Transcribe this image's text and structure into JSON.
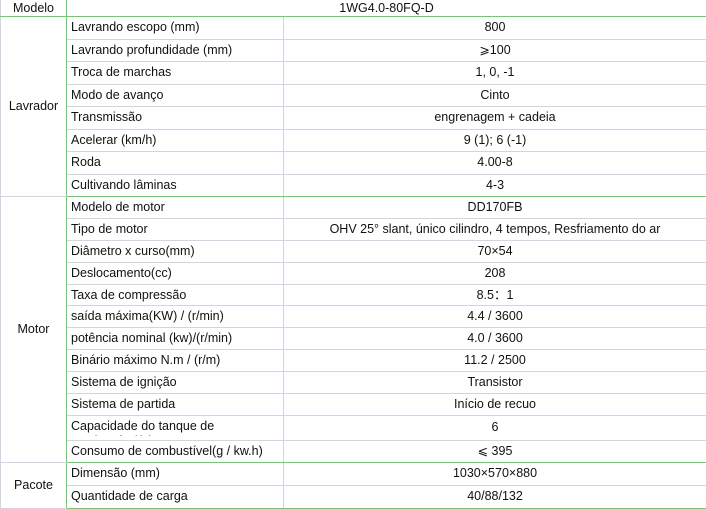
{
  "header": {
    "label": "Modelo",
    "model": "1WG4.0-80FQ-D"
  },
  "colors": {
    "group_border": "#4ee04e",
    "grid": "#ccd6e6"
  },
  "groups": [
    {
      "name": "Lavrador",
      "rows": [
        {
          "param": "Lavrando escopo (mm)",
          "value": "800"
        },
        {
          "param": "Lavrando profundidade (mm)",
          "value": "⩾100"
        },
        {
          "param": "Troca de marchas",
          "value": "1, 0, -1"
        },
        {
          "param": "Modo de avanço",
          "value": "Cinto"
        },
        {
          "param": "Transmissão",
          "value": "engrenagem + cadeia"
        },
        {
          "param": "Acelerar (km/h)",
          "value": "9 (1); 6 (-1)"
        },
        {
          "param": "Roda",
          "value": "4.00-8"
        },
        {
          "param": "Cultivando lâminas",
          "value": "4-3"
        }
      ]
    },
    {
      "name": "Motor",
      "rows": [
        {
          "param": "Modelo de motor",
          "value": "DD170FB"
        },
        {
          "param": "Tipo de motor",
          "value": "OHV 25° slant, único cilindro, 4 tempos, Resfriamento do ar"
        },
        {
          "param": "Diâmetro x curso(mm)",
          "value": "70×54"
        },
        {
          "param": "Deslocamento(cc)",
          "value": "208"
        },
        {
          "param": "Taxa de compressão",
          "value": "8.5：1"
        },
        {
          "param": "saída máxima(KW) / (r/min)",
          "value": "4.4 / 3600"
        },
        {
          "param": "potência nominal (kw)/(r/min)",
          "value": "4.0 / 3600"
        },
        {
          "param": "Binário máximo N.m / (r/m)",
          "value": "11.2 / 2500"
        },
        {
          "param": "Sistema de ignição",
          "value": "Transistor"
        },
        {
          "param": "Sistema de partida",
          "value": "Início de recuo"
        },
        {
          "param": "Capacidade do tanque de combustível(L)",
          "value": "6"
        },
        {
          "param": "Consumo de combustível(g / kw.h)",
          "value": "⩽ 395"
        }
      ]
    },
    {
      "name": "Pacote",
      "rows": [
        {
          "param": "Dimensão (mm)",
          "value": "1030×570×880"
        },
        {
          "param": "Quantidade de carga",
          "value": "40/88/132"
        }
      ]
    }
  ]
}
